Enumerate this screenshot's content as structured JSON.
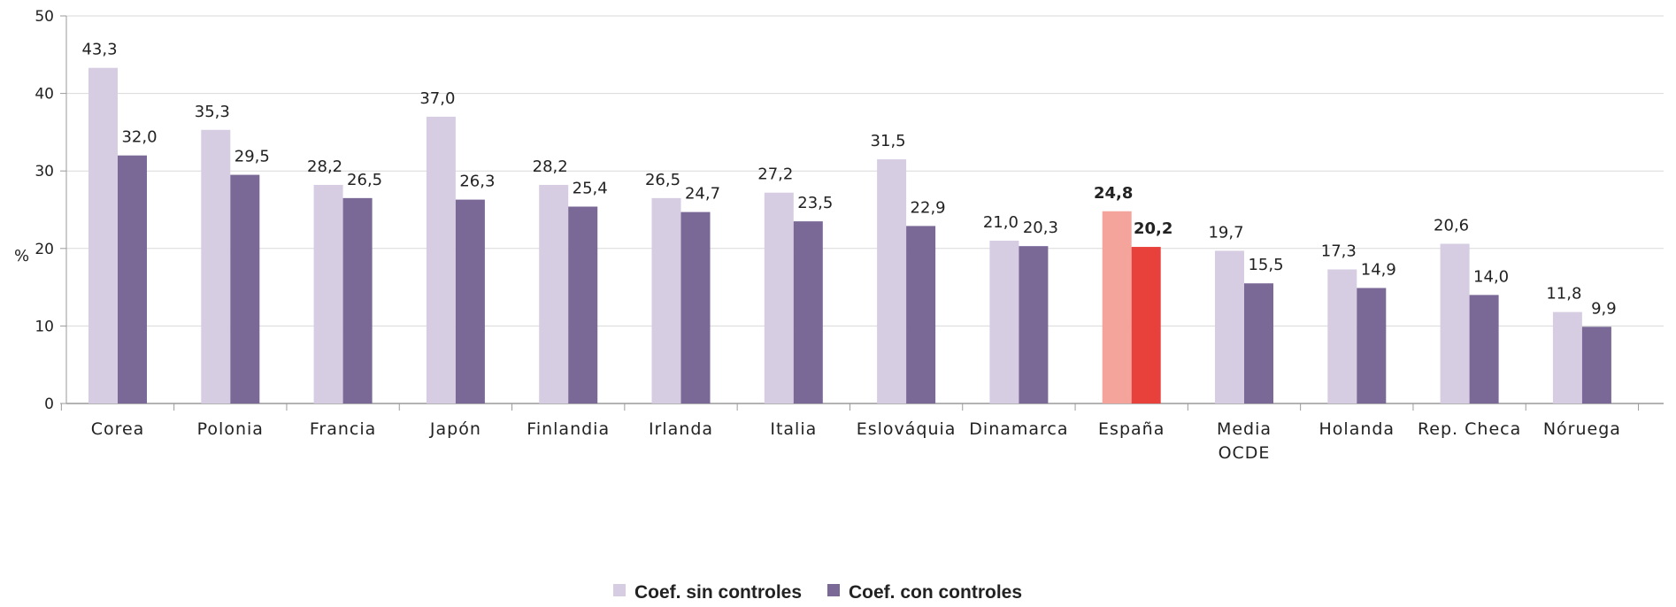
{
  "chart_data": {
    "type": "bar",
    "title": "",
    "xlabel": "",
    "ylabel": "%",
    "ylim": [
      0,
      50
    ],
    "yticks": [
      0,
      10,
      20,
      30,
      40,
      50
    ],
    "grid": true,
    "legend_position": "bottom",
    "categories": [
      [
        "Corea"
      ],
      [
        "Polonia"
      ],
      [
        "Francia"
      ],
      [
        "Japón"
      ],
      [
        "Finlandia"
      ],
      [
        "Irlanda"
      ],
      [
        "Italia"
      ],
      [
        "Eslováquia"
      ],
      [
        "Dinamarca"
      ],
      [
        "España"
      ],
      [
        "Media",
        "OCDE"
      ],
      [
        "Holanda"
      ],
      [
        "Rep. Checa"
      ],
      [
        "Nóruega"
      ]
    ],
    "series": [
      {
        "name": "Coef. sin controles",
        "color": "#d6cde3",
        "values": [
          43.3,
          35.3,
          28.2,
          37.0,
          28.2,
          26.5,
          27.2,
          31.5,
          21.0,
          24.8,
          19.7,
          17.3,
          20.6,
          11.8
        ],
        "labels": [
          "43,3",
          "35,3",
          "28,2",
          "37,0",
          "28,2",
          "26,5",
          "27,2",
          "31,5",
          "21,0",
          "24,8",
          "19,7",
          "17,3",
          "20,6",
          "11,8"
        ]
      },
      {
        "name": "Coef. con controles",
        "color": "#7a6896",
        "values": [
          32.0,
          29.5,
          26.5,
          26.3,
          25.4,
          24.7,
          23.5,
          22.9,
          20.3,
          20.2,
          15.5,
          14.9,
          14.0,
          9.9
        ],
        "labels": [
          "32,0",
          "29,5",
          "26,5",
          "26,3",
          "25,4",
          "24,7",
          "23,5",
          "22,9",
          "20,3",
          "20,2",
          "15,5",
          "14,9",
          "14,0",
          "9,9"
        ]
      }
    ],
    "highlight": {
      "category_index": 9,
      "colors": [
        "#f4a49a",
        "#e8403a"
      ]
    }
  }
}
